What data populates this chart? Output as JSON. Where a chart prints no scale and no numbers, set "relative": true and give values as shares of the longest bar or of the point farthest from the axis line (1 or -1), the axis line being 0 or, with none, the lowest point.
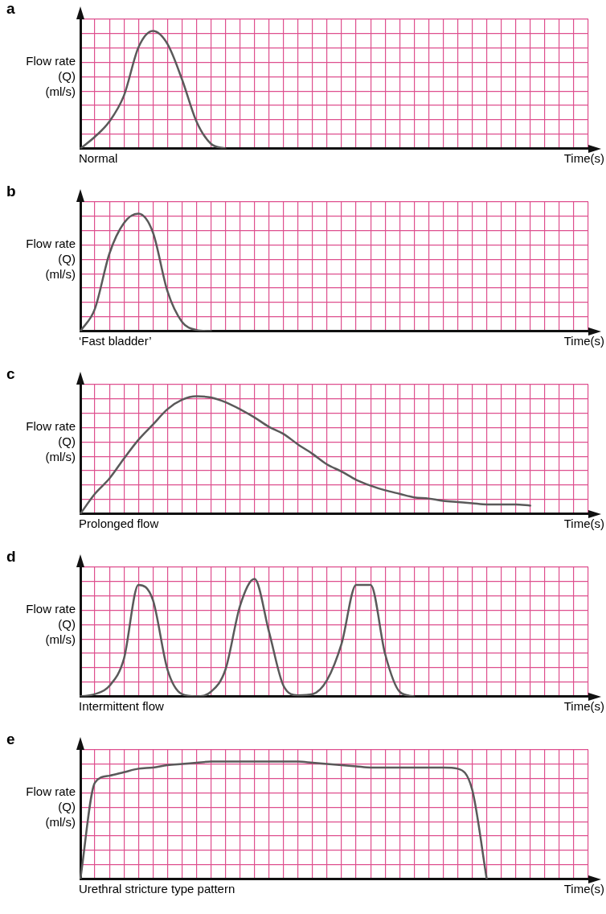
{
  "chart_data": [
    {
      "type": "line",
      "title": "a",
      "ylabel": "Flow rate (Q) (ml/s)",
      "xlabel": "Time(s)",
      "annotations": [
        "Normal"
      ],
      "relative": true,
      "grid": true,
      "categories": [
        null,
        null,
        null,
        null,
        null,
        null,
        null,
        null,
        null,
        null,
        null,
        null,
        null,
        null,
        null,
        null,
        null,
        null,
        null,
        null,
        null,
        null,
        null,
        null,
        null,
        null,
        null,
        null,
        null,
        null,
        null,
        null,
        null,
        null,
        null,
        null
      ],
      "series": [
        {
          "color": "#5a5a5a",
          "values": [
            0,
            0.1,
            0.23,
            0.45,
            0.86,
            1,
            0.89,
            0.59,
            0.23,
            0.04,
            0,
            null,
            null,
            null,
            null,
            null,
            null,
            null,
            null,
            null,
            null,
            null,
            null,
            null,
            null,
            null,
            null,
            null,
            null,
            null,
            null,
            null,
            null,
            null,
            null,
            null
          ]
        }
      ]
    },
    {
      "type": "line",
      "title": "b",
      "ylabel": "Flow rate (Q) (ml/s)",
      "xlabel": "Time(s)",
      "annotations": [
        "‘Fast bladder’"
      ],
      "relative": true,
      "grid": true,
      "categories": [
        null,
        null,
        null,
        null,
        null,
        null,
        null,
        null,
        null,
        null,
        null,
        null,
        null,
        null,
        null,
        null,
        null,
        null,
        null,
        null,
        null,
        null,
        null,
        null,
        null,
        null,
        null,
        null,
        null,
        null,
        null,
        null,
        null,
        null,
        null,
        null
      ],
      "series": [
        {
          "color": "#5a5a5a",
          "values": [
            0,
            0.19,
            0.66,
            0.92,
            1,
            0.84,
            0.34,
            0.08,
            0.01,
            0,
            null,
            null,
            null,
            null,
            null,
            null,
            null,
            null,
            null,
            null,
            null,
            null,
            null,
            null,
            null,
            null,
            null,
            null,
            null,
            null,
            null,
            null,
            null,
            null,
            null,
            null
          ]
        }
      ]
    },
    {
      "type": "line",
      "title": "c",
      "ylabel": "Flow rate (Q) (ml/s)",
      "xlabel": "Time(s)",
      "annotations": [
        "Prolonged flow"
      ],
      "relative": true,
      "grid": true,
      "categories": [
        null,
        null,
        null,
        null,
        null,
        null,
        null,
        null,
        null,
        null,
        null,
        null,
        null,
        null,
        null,
        null,
        null,
        null,
        null,
        null,
        null,
        null,
        null,
        null,
        null,
        null,
        null,
        null,
        null,
        null,
        null,
        null,
        null,
        null,
        null,
        null
      ],
      "series": [
        {
          "color": "#5a5a5a",
          "values": [
            0,
            0.17,
            0.3,
            0.47,
            0.63,
            0.76,
            0.89,
            0.97,
            1,
            0.99,
            0.95,
            0.89,
            0.82,
            0.74,
            0.68,
            0.59,
            0.51,
            0.42,
            0.36,
            0.29,
            0.24,
            0.2,
            0.17,
            0.14,
            0.13,
            0.11,
            0.1,
            0.09,
            0.08,
            0.08,
            0.08,
            0.07,
            null,
            null,
            null,
            null
          ]
        }
      ]
    },
    {
      "type": "line",
      "title": "d",
      "ylabel": "Flow rate (Q) (ml/s)",
      "xlabel": "Time(s)",
      "annotations": [
        "Intermittent flow"
      ],
      "relative": true,
      "grid": true,
      "categories": [
        null,
        null,
        null,
        null,
        null,
        null,
        null,
        null,
        null,
        null,
        null,
        null,
        null,
        null,
        null,
        null,
        null,
        null,
        null,
        null,
        null,
        null,
        null,
        null,
        null,
        null,
        null,
        null,
        null,
        null,
        null,
        null,
        null,
        null,
        null,
        null
      ],
      "series": [
        {
          "color": "#5a5a5a",
          "values": [
            0,
            0.02,
            0.09,
            0.32,
            0.95,
            0.82,
            0.23,
            0.02,
            0,
            0.04,
            0.23,
            0.77,
            1,
            0.55,
            0.09,
            0.01,
            0.02,
            0.14,
            0.45,
            0.95,
            0.95,
            0.36,
            0.04,
            0,
            null,
            null,
            null,
            null,
            null,
            null,
            null,
            null,
            null,
            null,
            null,
            null
          ]
        }
      ]
    },
    {
      "type": "line",
      "title": "e",
      "ylabel": "Flow rate (Q) (ml/s)",
      "xlabel": "Time(s)",
      "annotations": [
        "Urethral stricture type pattern"
      ],
      "relative": true,
      "grid": true,
      "categories": [
        null,
        null,
        null,
        null,
        null,
        null,
        null,
        null,
        null,
        null,
        null,
        null,
        null,
        null,
        null,
        null,
        null,
        null,
        null,
        null,
        null,
        null,
        null,
        null,
        null,
        null,
        null,
        null,
        null,
        null,
        null,
        null,
        null,
        null,
        null,
        null
      ],
      "series": [
        {
          "color": "#5a5a5a",
          "values": [
            0,
            0.82,
            0.88,
            0.91,
            0.94,
            0.95,
            0.97,
            0.98,
            0.99,
            1,
            1,
            1,
            1,
            1,
            1,
            1,
            0.99,
            0.98,
            0.97,
            0.96,
            0.95,
            0.95,
            0.95,
            0.95,
            0.95,
            0.95,
            0.94,
            0.76,
            0,
            null,
            null,
            null,
            null,
            null,
            null,
            null
          ]
        }
      ]
    }
  ]
}
